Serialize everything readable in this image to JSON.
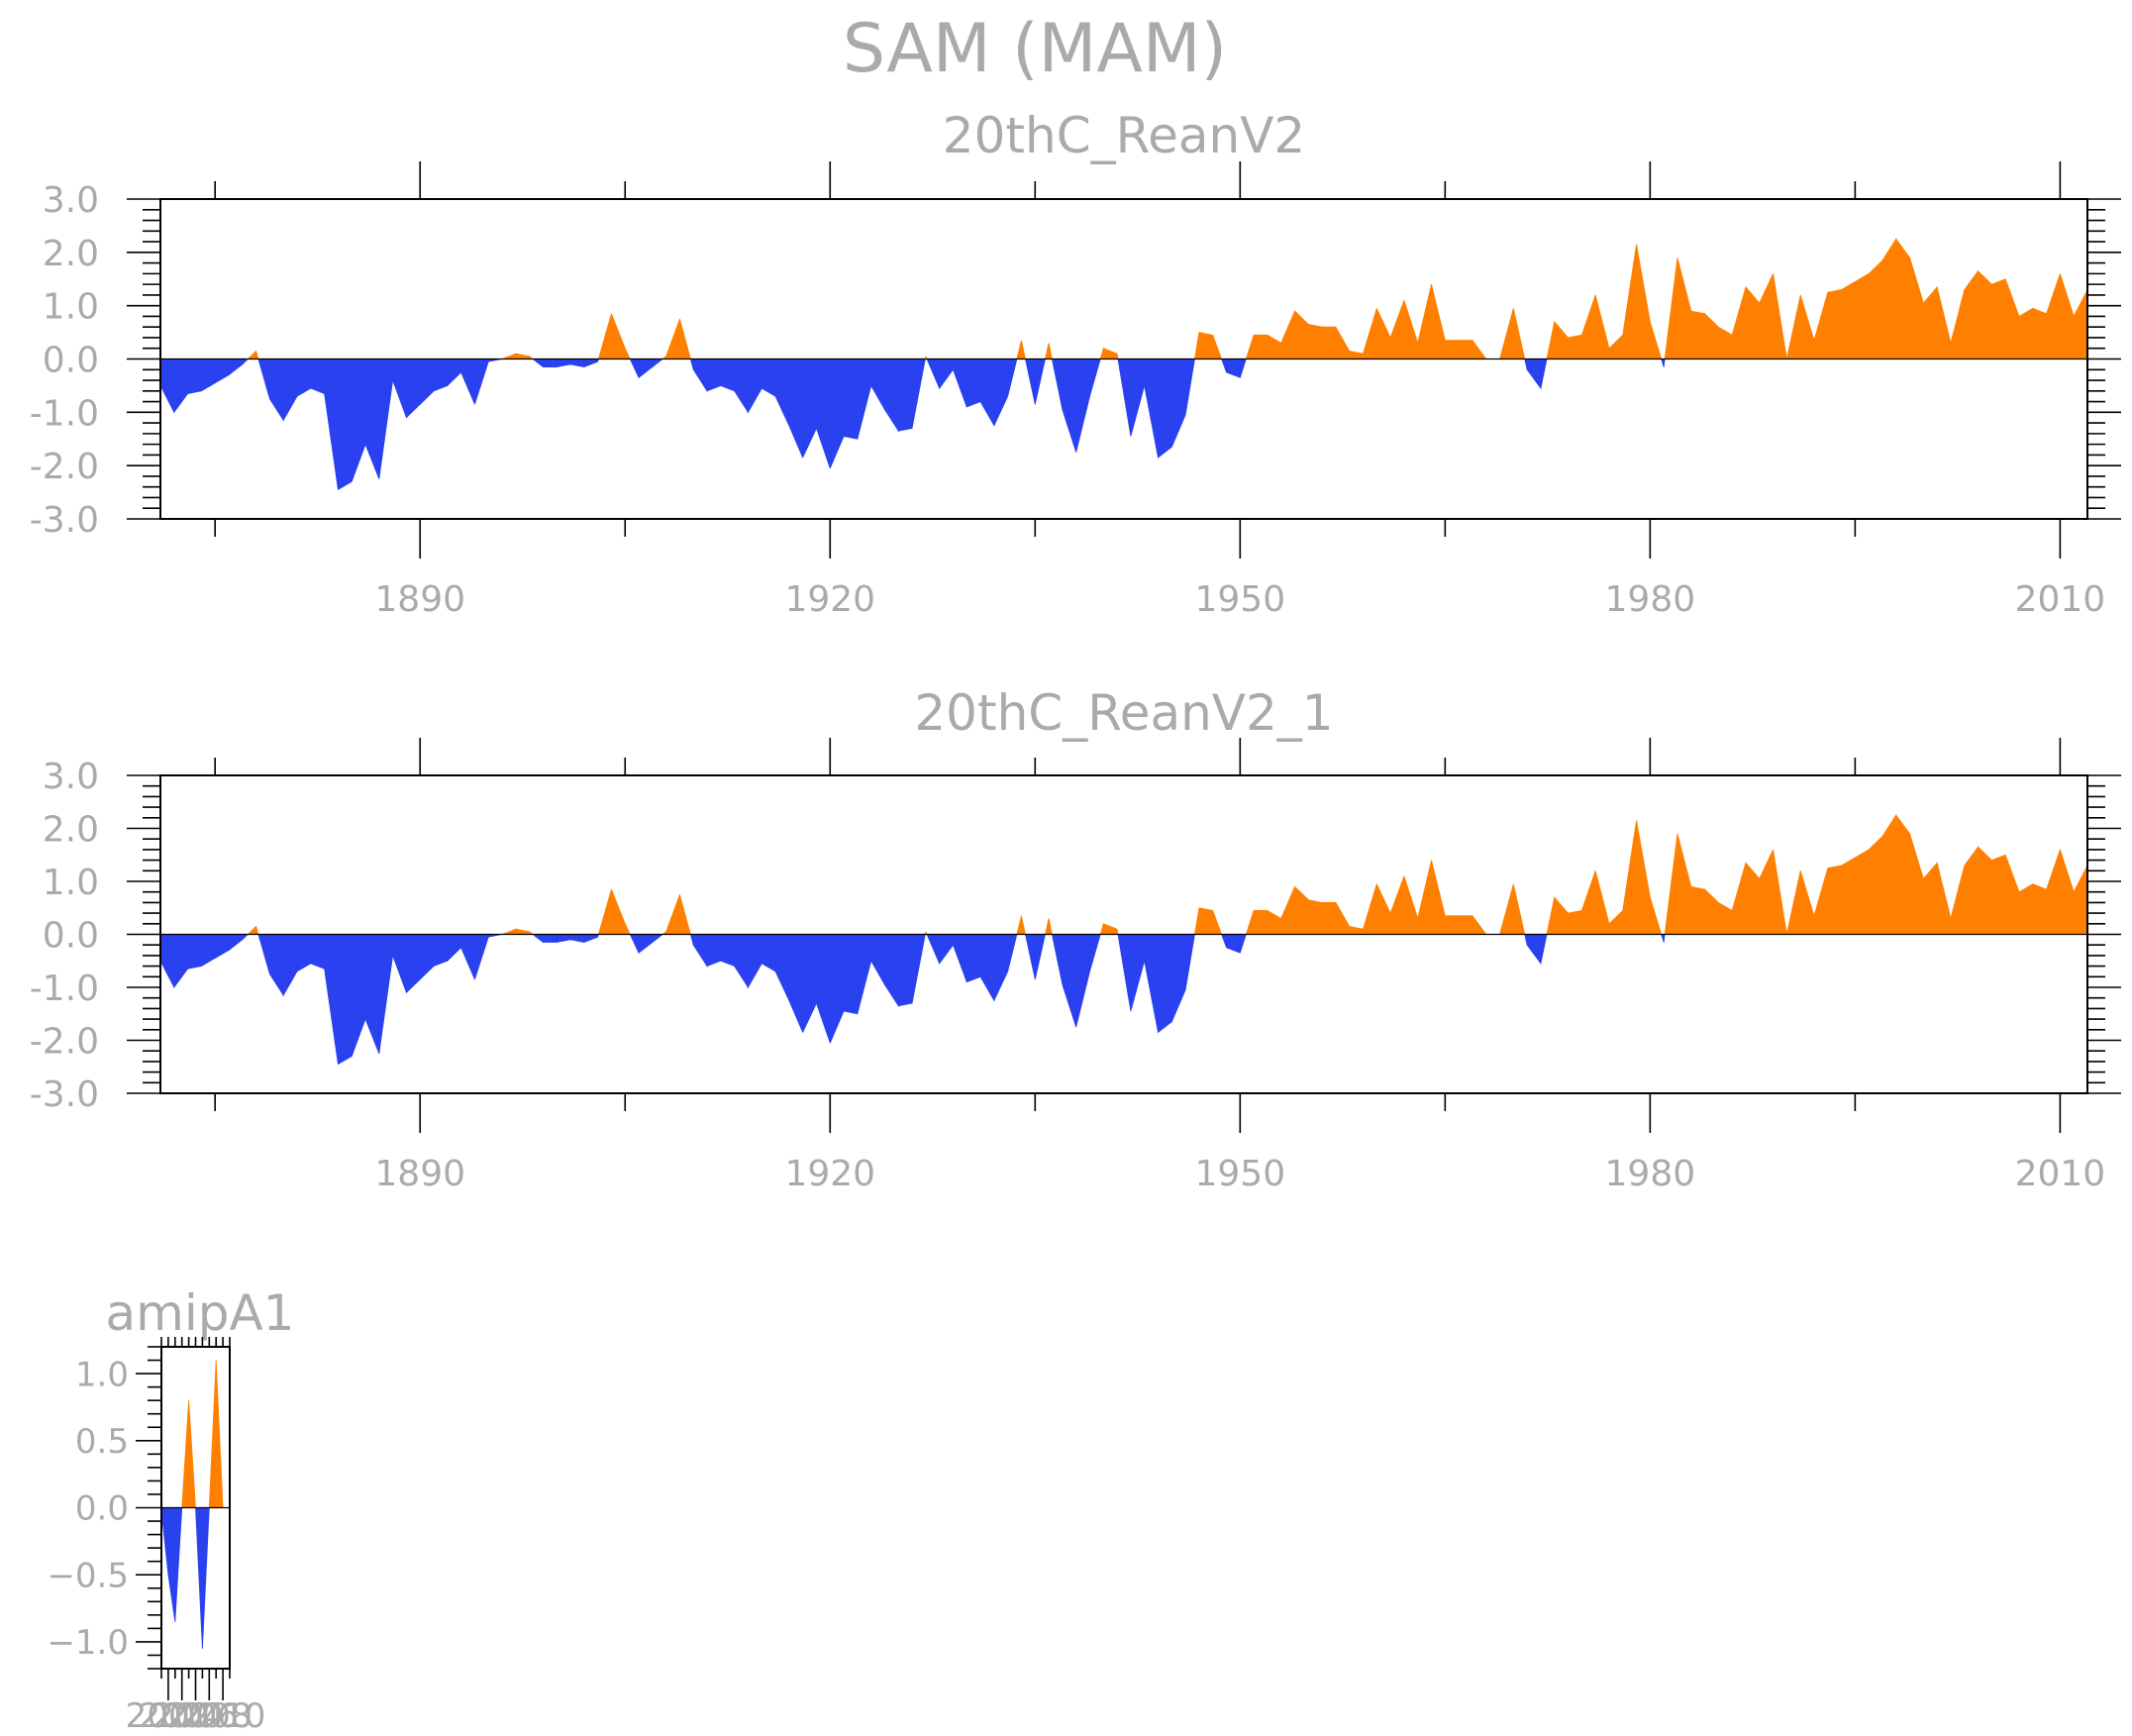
{
  "figure": {
    "title": "SAM (MAM)"
  },
  "colors": {
    "positive": "#ff8000",
    "negative": "#2a41f0",
    "text": "#aaaaaa"
  },
  "chart_data": [
    {
      "type": "area",
      "title": "20thC_ReanV2",
      "xlim": [
        1871,
        2012
      ],
      "ylim": [
        -3,
        3
      ],
      "yticks": [
        3,
        2,
        1,
        0,
        -1,
        -2,
        -3
      ],
      "ytick_labels": [
        "3.0",
        "2.0",
        "1.0",
        "0.0",
        "-1.0",
        "-2.0",
        "-3.0"
      ],
      "xticks": [
        1890,
        1920,
        1950,
        1980,
        2010
      ],
      "xtick_labels": [
        "1890",
        "1920",
        "1950",
        "1980",
        "2010"
      ],
      "series": [
        {
          "x": [
            1871,
            1872,
            1873,
            1874,
            1875,
            1876,
            1877,
            1878,
            1879,
            1880,
            1881,
            1882,
            1883,
            1884,
            1885,
            1886,
            1887,
            1888,
            1889,
            1890,
            1891,
            1892,
            1893,
            1894,
            1895,
            1896,
            1897,
            1898,
            1899,
            1900,
            1901,
            1902,
            1903,
            1904,
            1905,
            1906,
            1907,
            1908,
            1909,
            1910,
            1911,
            1912,
            1913,
            1914,
            1915,
            1916,
            1917,
            1918,
            1919,
            1920,
            1921,
            1922,
            1923,
            1924,
            1925,
            1926,
            1927,
            1928,
            1929,
            1930,
            1931,
            1932,
            1933,
            1934,
            1935,
            1936,
            1937,
            1938,
            1939,
            1940,
            1941,
            1942,
            1943,
            1944,
            1945,
            1946,
            1947,
            1948,
            1949,
            1950,
            1951,
            1952,
            1953,
            1954,
            1955,
            1956,
            1957,
            1958,
            1959,
            1960,
            1961,
            1962,
            1963,
            1964,
            1965,
            1966,
            1967,
            1968,
            1969,
            1970,
            1971,
            1972,
            1973,
            1974,
            1975,
            1976,
            1977,
            1978,
            1979,
            1980,
            1981,
            1982,
            1983,
            1984,
            1985,
            1986,
            1987,
            1988,
            1989,
            1990,
            1991,
            1992,
            1993,
            1994,
            1995,
            1996,
            1997,
            1998,
            1999,
            2000,
            2001,
            2002,
            2003,
            2004,
            2005,
            2006,
            2007,
            2008,
            2009,
            2010,
            2011,
            2012
          ],
          "values": [
            -0.5,
            -1.0,
            -0.65,
            -0.6,
            -0.45,
            -0.3,
            -0.1,
            0.15,
            -0.75,
            -1.15,
            -0.7,
            -0.55,
            -0.65,
            -2.45,
            -2.3,
            -1.6,
            -2.25,
            -0.4,
            -1.1,
            -0.85,
            -0.6,
            -0.5,
            -0.25,
            -0.85,
            -0.05,
            0.0,
            0.1,
            0.05,
            -0.15,
            -0.15,
            -0.1,
            -0.15,
            -0.05,
            0.85,
            0.2,
            -0.35,
            -0.15,
            0.05,
            0.75,
            -0.2,
            -0.6,
            -0.5,
            -0.6,
            -1.0,
            -0.55,
            -0.7,
            -1.25,
            -1.85,
            -1.3,
            -2.05,
            -1.45,
            -1.5,
            -0.5,
            -0.95,
            -1.35,
            -1.3,
            0.05,
            -0.55,
            -0.2,
            -0.9,
            -0.8,
            -1.25,
            -0.7,
            0.35,
            -0.85,
            0.3,
            -0.95,
            -1.75,
            -0.7,
            0.2,
            0.1,
            -1.45,
            -0.5,
            -1.85,
            -1.65,
            -1.05,
            0.5,
            0.45,
            -0.25,
            -0.35,
            0.45,
            0.45,
            0.3,
            0.9,
            0.65,
            0.6,
            0.6,
            0.15,
            0.1,
            0.95,
            0.4,
            1.1,
            0.3,
            1.4,
            0.35,
            0.35,
            0.35,
            0.0,
            0.0,
            0.95,
            -0.2,
            -0.55,
            0.7,
            0.4,
            0.45,
            1.2,
            0.2,
            0.45,
            2.15,
            0.7,
            -0.15,
            1.9,
            0.9,
            0.85,
            0.6,
            0.45,
            1.35,
            1.05,
            1.6,
            0.0,
            1.2,
            0.35,
            1.25,
            1.3,
            1.45,
            1.6,
            1.85,
            2.25,
            1.9,
            1.05,
            1.35,
            0.3,
            1.3,
            1.65,
            1.4,
            1.5,
            0.8,
            0.95,
            0.85,
            1.6,
            0.8,
            1.3
          ]
        }
      ]
    },
    {
      "type": "area",
      "title": "20thC_ReanV2_1",
      "xlim": [
        1871,
        2012
      ],
      "ylim": [
        -3,
        3
      ],
      "yticks": [
        3,
        2,
        1,
        0,
        -1,
        -2,
        -3
      ],
      "ytick_labels": [
        "3.0",
        "2.0",
        "1.0",
        "0.0",
        "-1.0",
        "-2.0",
        "-3.0"
      ],
      "xticks": [
        1890,
        1920,
        1950,
        1980,
        2010
      ],
      "xtick_labels": [
        "1890",
        "1920",
        "1950",
        "1980",
        "2010"
      ],
      "series": [
        {
          "x": [
            1871,
            1872,
            1873,
            1874,
            1875,
            1876,
            1877,
            1878,
            1879,
            1880,
            1881,
            1882,
            1883,
            1884,
            1885,
            1886,
            1887,
            1888,
            1889,
            1890,
            1891,
            1892,
            1893,
            1894,
            1895,
            1896,
            1897,
            1898,
            1899,
            1900,
            1901,
            1902,
            1903,
            1904,
            1905,
            1906,
            1907,
            1908,
            1909,
            1910,
            1911,
            1912,
            1913,
            1914,
            1915,
            1916,
            1917,
            1918,
            1919,
            1920,
            1921,
            1922,
            1923,
            1924,
            1925,
            1926,
            1927,
            1928,
            1929,
            1930,
            1931,
            1932,
            1933,
            1934,
            1935,
            1936,
            1937,
            1938,
            1939,
            1940,
            1941,
            1942,
            1943,
            1944,
            1945,
            1946,
            1947,
            1948,
            1949,
            1950,
            1951,
            1952,
            1953,
            1954,
            1955,
            1956,
            1957,
            1958,
            1959,
            1960,
            1961,
            1962,
            1963,
            1964,
            1965,
            1966,
            1967,
            1968,
            1969,
            1970,
            1971,
            1972,
            1973,
            1974,
            1975,
            1976,
            1977,
            1978,
            1979,
            1980,
            1981,
            1982,
            1983,
            1984,
            1985,
            1986,
            1987,
            1988,
            1989,
            1990,
            1991,
            1992,
            1993,
            1994,
            1995,
            1996,
            1997,
            1998,
            1999,
            2000,
            2001,
            2002,
            2003,
            2004,
            2005,
            2006,
            2007,
            2008,
            2009,
            2010,
            2011,
            2012
          ],
          "values": [
            -0.5,
            -1.0,
            -0.65,
            -0.6,
            -0.45,
            -0.3,
            -0.1,
            0.15,
            -0.75,
            -1.15,
            -0.7,
            -0.55,
            -0.65,
            -2.45,
            -2.3,
            -1.6,
            -2.25,
            -0.4,
            -1.1,
            -0.85,
            -0.6,
            -0.5,
            -0.25,
            -0.85,
            -0.05,
            0.0,
            0.1,
            0.05,
            -0.15,
            -0.15,
            -0.1,
            -0.15,
            -0.05,
            0.85,
            0.2,
            -0.35,
            -0.15,
            0.05,
            0.75,
            -0.2,
            -0.6,
            -0.5,
            -0.6,
            -1.0,
            -0.55,
            -0.7,
            -1.25,
            -1.85,
            -1.3,
            -2.05,
            -1.45,
            -1.5,
            -0.5,
            -0.95,
            -1.35,
            -1.3,
            0.05,
            -0.55,
            -0.2,
            -0.9,
            -0.8,
            -1.25,
            -0.7,
            0.35,
            -0.85,
            0.3,
            -0.95,
            -1.75,
            -0.7,
            0.2,
            0.1,
            -1.45,
            -0.5,
            -1.85,
            -1.65,
            -1.05,
            0.5,
            0.45,
            -0.25,
            -0.35,
            0.45,
            0.45,
            0.3,
            0.9,
            0.65,
            0.6,
            0.6,
            0.15,
            0.1,
            0.95,
            0.4,
            1.1,
            0.3,
            1.4,
            0.35,
            0.35,
            0.35,
            0.0,
            0.0,
            0.95,
            -0.2,
            -0.55,
            0.7,
            0.4,
            0.45,
            1.2,
            0.2,
            0.45,
            2.15,
            0.7,
            -0.15,
            1.9,
            0.9,
            0.85,
            0.6,
            0.45,
            1.35,
            1.05,
            1.6,
            0.0,
            1.2,
            0.35,
            1.25,
            1.3,
            1.45,
            1.6,
            1.85,
            2.25,
            1.9,
            1.05,
            1.35,
            0.3,
            1.3,
            1.65,
            1.4,
            1.5,
            0.8,
            0.95,
            0.85,
            1.6,
            0.8,
            1.3
          ]
        }
      ]
    },
    {
      "type": "area",
      "title": "amipA1",
      "xlim": [
        2001,
        2011
      ],
      "ylim": [
        -1.2,
        1.2
      ],
      "yticks": [
        1.0,
        0.5,
        0.0,
        -0.5,
        -1.0
      ],
      "ytick_labels": [
        "1.0",
        "0.5",
        "0.0",
        "−0.5",
        "−1.0"
      ],
      "xticks": [
        2002,
        2004,
        2006,
        2008,
        2010
      ],
      "xtick_labels": [
        "2002",
        "2004",
        "2006",
        "2008",
        "2010"
      ],
      "series": [
        {
          "x": [
            2001,
            2002,
            2003,
            2004,
            2005,
            2006,
            2007,
            2008,
            2009,
            2010,
            2011
          ],
          "values": [
            -0.02,
            -0.5,
            -0.85,
            0.0,
            0.8,
            0.0,
            -1.05,
            0.0,
            1.1,
            0.0,
            0.0
          ]
        }
      ]
    }
  ]
}
